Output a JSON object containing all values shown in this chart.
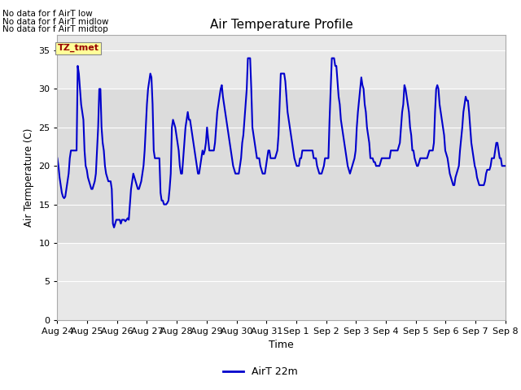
{
  "title": "Air Temperature Profile",
  "xlabel": "Time",
  "ylabel": "Air Termperature (C)",
  "line_color": "#0000cc",
  "line_width": 1.5,
  "ylim": [
    0,
    37
  ],
  "yticks": [
    0,
    5,
    10,
    15,
    20,
    25,
    30,
    35
  ],
  "background_color": "#ffffff",
  "plot_bg_color": "#e8e8e8",
  "legend_label": "AirT 22m",
  "legend_line_color": "#0000cc",
  "annotation_lines": [
    "No data for f AirT low",
    "No data for f AirT midlow",
    "No data for f AirT midtop"
  ],
  "annotation_box_text": "TZ_tmet",
  "annotation_box_color": "#990000",
  "annotation_box_bg": "#ffff99",
  "xticklabels": [
    "Aug 24",
    "Aug 25",
    "Aug 26",
    "Aug 27",
    "Aug 28",
    "Aug 29",
    "Aug 30",
    "Aug 31",
    "Sep 1",
    "Sep 2",
    "Sep 3",
    "Sep 4",
    "Sep 5",
    "Sep 6",
    "Sep 7",
    "Sep 8"
  ],
  "temp_values": [
    21,
    20,
    18.5,
    17.5,
    16.5,
    16,
    15.8,
    16,
    17,
    18,
    19,
    21,
    22,
    22,
    22,
    22,
    22,
    22,
    33,
    32,
    30,
    28,
    27,
    26,
    22,
    20,
    19.5,
    18.5,
    18,
    17.5,
    17,
    17,
    17.5,
    18,
    19,
    22,
    25,
    30,
    30,
    25,
    23,
    22,
    20,
    19,
    18.5,
    18,
    18,
    18,
    17,
    12.5,
    12,
    12.5,
    13,
    13,
    13,
    13,
    12.5,
    13,
    13,
    13,
    12.8,
    13,
    13.2,
    13,
    15,
    17,
    18,
    19,
    18.5,
    18,
    17.5,
    17,
    17,
    17.5,
    18,
    19,
    20,
    22,
    25,
    28,
    30,
    31,
    32,
    31.5,
    28,
    22,
    21,
    21,
    21,
    21,
    21,
    16.5,
    15.5,
    15.5,
    15,
    15,
    15,
    15.2,
    15.5,
    17,
    19,
    25,
    26,
    25.5,
    25,
    24,
    23,
    22,
    20,
    19,
    19,
    21,
    23,
    25,
    26,
    27,
    26,
    26,
    25,
    24,
    23,
    22,
    21,
    20,
    19,
    19,
    20,
    21,
    22,
    21.5,
    22,
    23,
    25,
    23.5,
    22,
    22,
    22,
    22,
    22,
    23,
    25,
    27,
    28,
    29,
    30,
    30.5,
    29,
    28,
    27,
    26,
    25,
    24,
    23,
    22,
    21,
    20,
    19.5,
    19,
    19,
    19,
    19,
    20,
    21,
    23,
    24,
    26,
    28,
    30,
    34,
    34,
    34,
    30,
    25,
    24,
    23,
    22,
    21,
    21,
    21,
    20,
    19.5,
    19,
    19,
    19,
    20,
    21,
    22,
    22,
    21,
    21,
    21,
    21,
    21,
    21.5,
    22,
    24,
    28,
    32,
    32,
    32,
    32,
    31,
    29,
    27,
    26,
    25,
    24,
    23,
    22,
    21,
    20.5,
    20,
    20,
    20,
    21,
    21,
    22,
    22,
    22,
    22,
    22,
    22,
    22,
    22,
    22,
    22,
    21,
    21,
    21,
    20,
    19.5,
    19,
    19,
    19,
    19.5,
    20,
    21,
    21,
    21,
    21,
    26,
    30,
    34,
    34,
    34,
    33,
    33,
    31,
    29,
    28,
    26,
    25,
    24,
    23,
    22,
    21,
    20,
    19.5,
    19,
    19.5,
    20,
    20.5,
    21,
    22,
    25,
    27,
    28.5,
    30,
    31.5,
    30.5,
    30,
    28,
    27,
    25,
    24,
    23,
    21,
    21,
    21,
    20.5,
    20.5,
    20,
    20,
    20,
    20,
    20.5,
    21,
    21,
    21,
    21,
    21,
    21,
    21,
    21,
    22,
    22,
    22,
    22,
    22,
    22,
    22,
    22.5,
    23,
    25,
    27,
    28,
    30.5,
    30,
    29,
    28,
    27,
    25,
    24,
    22,
    22,
    21,
    20.5,
    20,
    20,
    20.5,
    21,
    21,
    21,
    21,
    21,
    21,
    21,
    21.5,
    22,
    22,
    22,
    22,
    23,
    27,
    30,
    30.5,
    30,
    28,
    27,
    26,
    25,
    24,
    22,
    21.5,
    21,
    20,
    19,
    18.5,
    18,
    17.5,
    17.5,
    18.5,
    19,
    19.5,
    20,
    22,
    23.5,
    25,
    27,
    28,
    29,
    28.5,
    28.5,
    27,
    25,
    23,
    22,
    21,
    20,
    19.5,
    18.5,
    18,
    17.5,
    17.5,
    17.5,
    17.5,
    17.5,
    18,
    19,
    19.5,
    19.5,
    19.5,
    20,
    21,
    21,
    21,
    22,
    23,
    23,
    22,
    21,
    21,
    20,
    20,
    20,
    20
  ]
}
